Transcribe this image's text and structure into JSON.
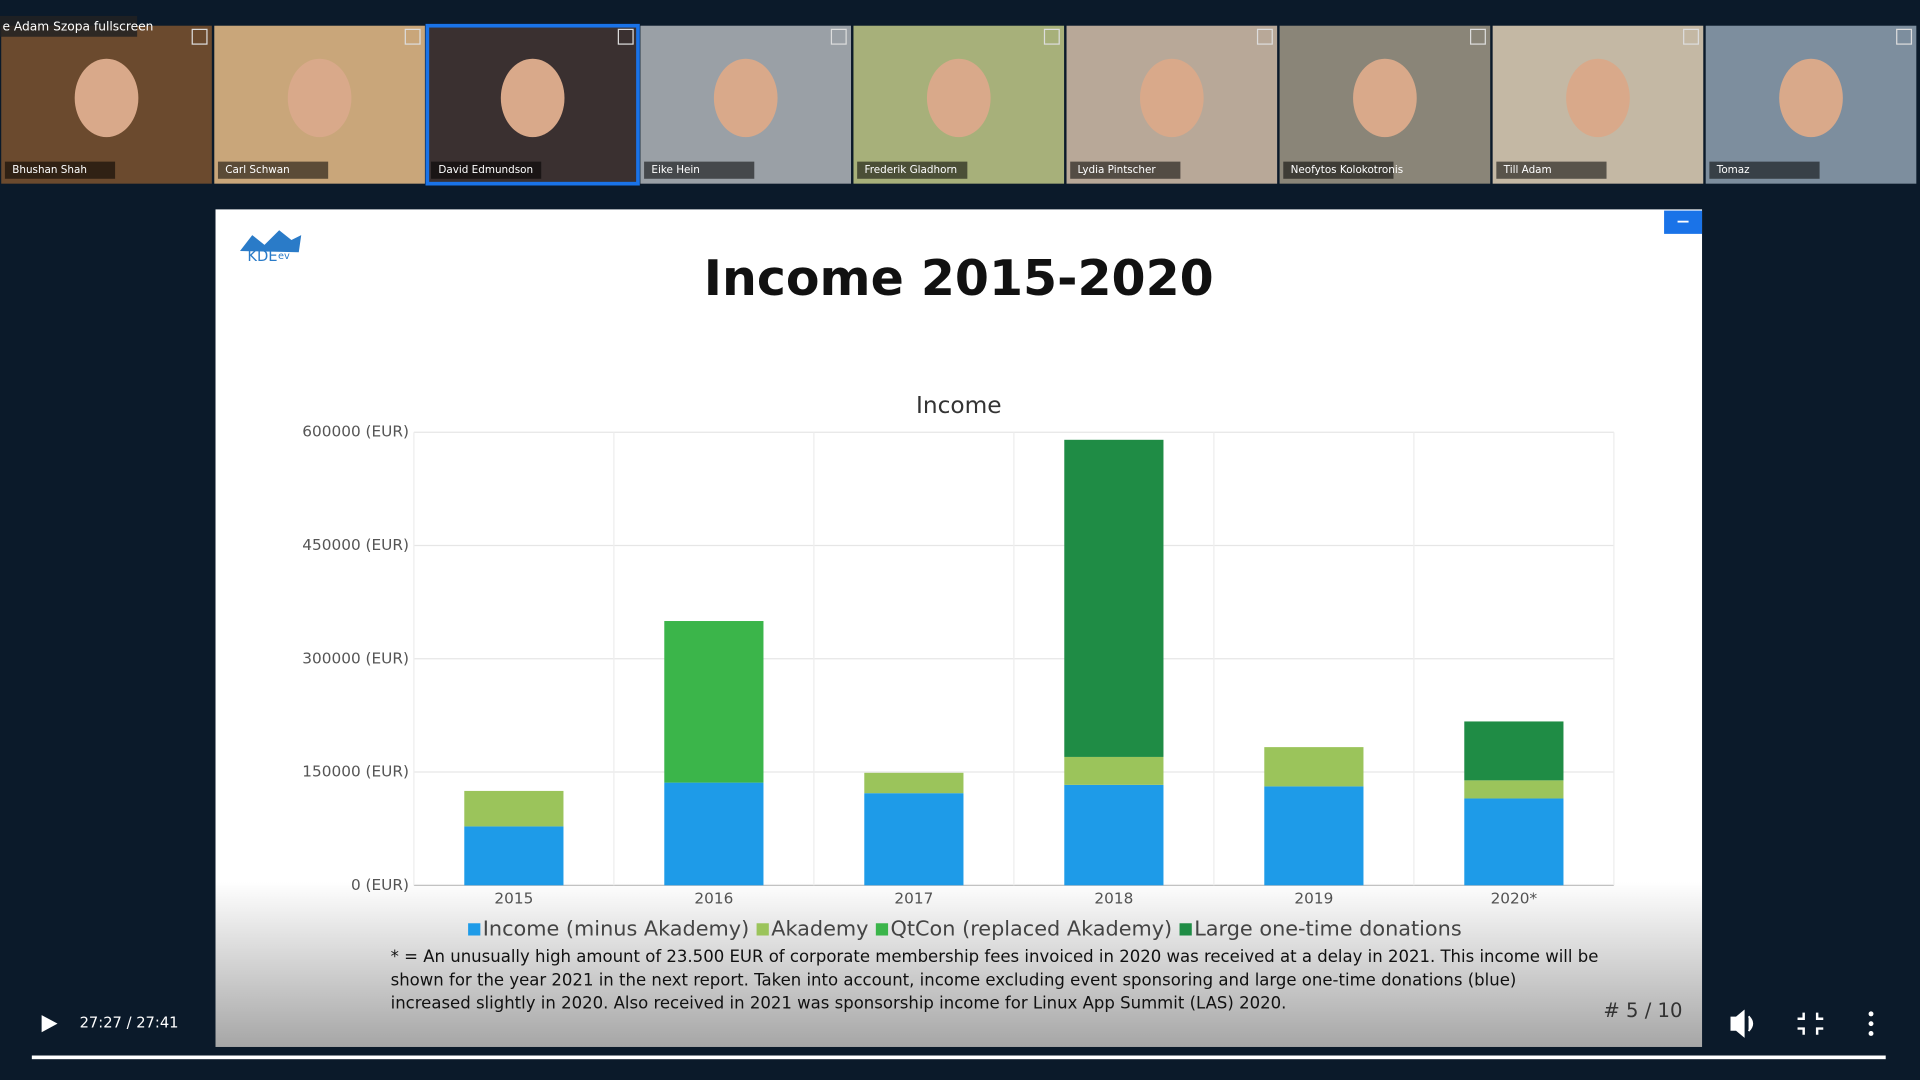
{
  "call": {
    "banner": "e Adam Szopa fullscreen",
    "participants": [
      "Bhushan Shah",
      "Carl Schwan",
      "David Edmundson",
      "Eike Hein",
      "Frederik Gladhorn",
      "Lydia Pintscher",
      "Neofytos Kolokotronis",
      "Till Adam",
      "Tomaz"
    ]
  },
  "slide": {
    "logo": "KDE",
    "logo_suffix": "ev",
    "title": "Income 2015-2020",
    "footnote": [
      "* = An unusually high amount of 23.500 EUR of corporate membership fees invoiced in 2020 was received at a delay in 2021. This income will be",
      "shown for the year 2021 in the next report. Taken into account, income excluding event sponsoring and large one-time donations (blue)",
      "increased slightly in 2020. Also received in 2021 was sponsorship income for Linux App Summit (LAS) 2020."
    ],
    "page": "# 5 / 10"
  },
  "chart_data": {
    "type": "bar",
    "stacked": true,
    "title": "Income",
    "categories": [
      "2015",
      "2016",
      "2017",
      "2018",
      "2019",
      "2020*"
    ],
    "series": [
      {
        "name": "Income (minus Akademy)",
        "color": "#1e9be8",
        "values": [
          78000,
          136000,
          122000,
          133000,
          131000,
          115000
        ]
      },
      {
        "name": "Akademy",
        "color": "#9bc45b",
        "values": [
          47000,
          null,
          27000,
          37000,
          52000,
          24000
        ]
      },
      {
        "name": "QtCon (replaced Akademy)",
        "color": "#3bb54a",
        "values": [
          null,
          214000,
          null,
          null,
          null,
          null
        ]
      },
      {
        "name": "Large one-time donations",
        "color": "#1f8c45",
        "values": [
          null,
          null,
          null,
          420000,
          null,
          78000
        ]
      }
    ],
    "ylim": [
      0,
      600000
    ],
    "yticks": [
      {
        "value": 0,
        "label": "0 (EUR)"
      },
      {
        "value": 150000,
        "label": "150000 (EUR)"
      },
      {
        "value": 300000,
        "label": "300000 (EUR)"
      },
      {
        "value": 450000,
        "label": "450000 (EUR)"
      },
      {
        "value": 600000,
        "label": "600000 (EUR)"
      }
    ],
    "grid": true
  },
  "player": {
    "time": "27:27 / 27:41"
  }
}
